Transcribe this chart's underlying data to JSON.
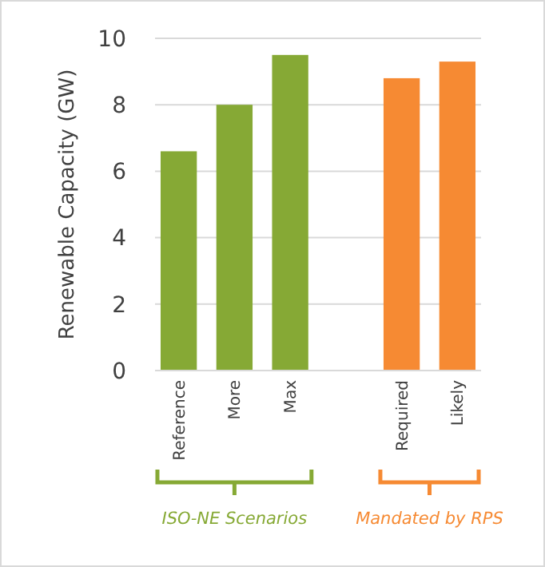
{
  "chart_data": {
    "type": "bar",
    "ylabel": "Renewable Capacity (GW)",
    "categories": [
      "Reference",
      "More",
      "Max",
      null,
      "Required",
      "Likely"
    ],
    "values": [
      6.6,
      8.0,
      9.5,
      null,
      8.8,
      9.3
    ],
    "colors": [
      "#86a935",
      "#86a935",
      "#86a935",
      null,
      "#f68a33",
      "#f68a33"
    ],
    "ylim": [
      0,
      10
    ],
    "yticks": [
      0,
      2,
      4,
      6,
      8,
      10
    ],
    "grid": "y",
    "annotations": [
      "ISO-NE Scenarios",
      "Mandated by RPS"
    ]
  }
}
